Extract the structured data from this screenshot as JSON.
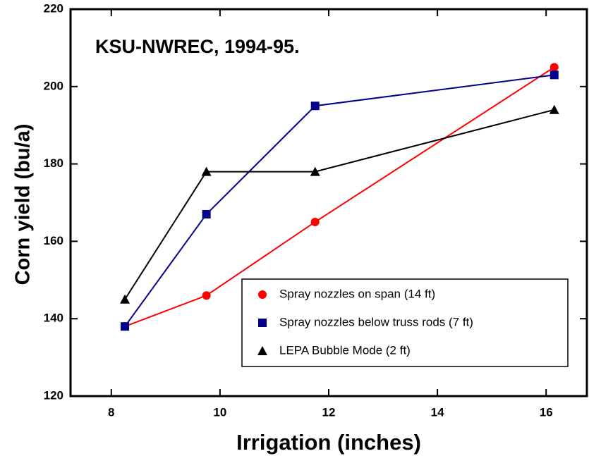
{
  "chart_data": {
    "type": "line",
    "title": "KSU-NWREC, 1994-95.",
    "x_label": "Irrigation (inches)",
    "y_label": "Corn yield (bu/a)",
    "x": [
      8.25,
      9.75,
      11.75,
      16.15
    ],
    "series": [
      {
        "name": "Spray nozzles on span (14 ft)",
        "color": "#ff0000",
        "marker": "circle",
        "values": [
          138,
          146,
          165,
          205
        ]
      },
      {
        "name": "Spray nozzles below truss rods (7 ft)",
        "color": "#00008b",
        "marker": "square",
        "values": [
          138,
          167,
          195,
          203
        ]
      },
      {
        "name": "LEPA Bubble Mode (2 ft)",
        "color": "#000000",
        "marker": "triangle",
        "values": [
          145,
          178,
          178,
          194
        ]
      }
    ],
    "xlim": [
      7.25,
      16.75
    ],
    "xticks": [
      8,
      10,
      12,
      14,
      16
    ],
    "ylim": [
      120,
      220
    ],
    "yticks": [
      120,
      140,
      160,
      180,
      200,
      220
    ],
    "legend": "lower right"
  }
}
